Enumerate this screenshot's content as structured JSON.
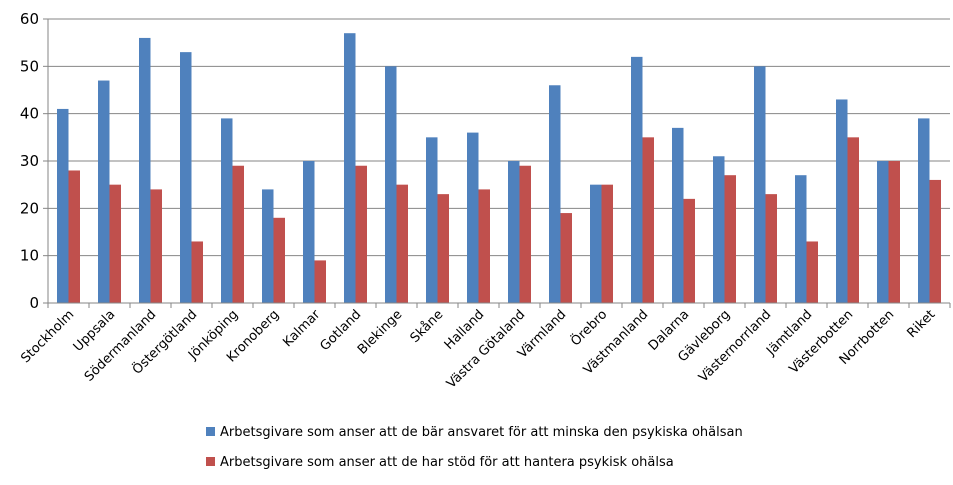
{
  "chart_data": {
    "type": "bar",
    "title": "",
    "xlabel": "",
    "ylabel": "",
    "ylim": [
      0,
      60
    ],
    "yticks": [
      0,
      10,
      20,
      30,
      40,
      50,
      60
    ],
    "grid": true,
    "legend_position": "bottom",
    "categories": [
      "Stockholm",
      "Uppsala",
      "Södermanland",
      "Östergötland",
      "Jönköping",
      "Kronoberg",
      "Kalmar",
      "Gotland",
      "Blekinge",
      "Skåne",
      "Halland",
      "Västra Götaland",
      "Värmland",
      "Örebro",
      "Västmanland",
      "Dalarna",
      "Gävleborg",
      "Västernorrland",
      "Jämtland",
      "Västerbotten",
      "Norrbotten",
      "Riket"
    ],
    "series": [
      {
        "name": "Arbetsgivare som anser att de bär ansvaret för att minska den psykiska ohälsan",
        "color": "#4F81BD",
        "values": [
          41,
          47,
          56,
          53,
          39,
          24,
          30,
          57,
          50,
          35,
          36,
          30,
          46,
          25,
          52,
          37,
          31,
          50,
          27,
          43,
          30,
          39
        ]
      },
      {
        "name": "Arbetsgivare som anser att de har stöd för att hantera psykisk ohälsa",
        "color": "#C0504D",
        "values": [
          28,
          25,
          24,
          13,
          29,
          18,
          9,
          29,
          25,
          23,
          24,
          29,
          19,
          25,
          35,
          22,
          27,
          23,
          13,
          35,
          30,
          26
        ]
      }
    ]
  }
}
